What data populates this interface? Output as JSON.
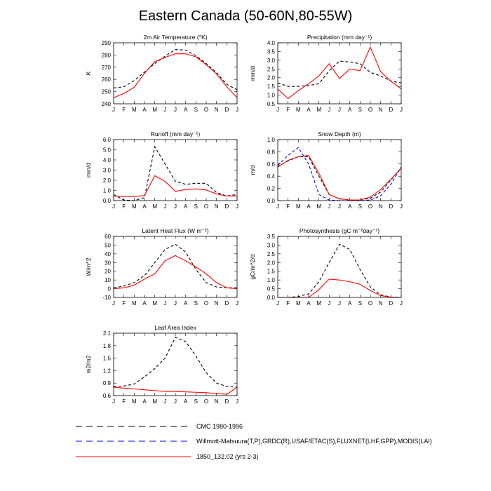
{
  "figure_title": "Eastern Canada (50-60N,80-55W)",
  "series_styles": [
    {
      "name": "CMC 1980-1996",
      "color": "#000000",
      "dash": "4,3"
    },
    {
      "name": "Willmott-Matsuura(T,P),GRDC(R),USAF/ETAC(S),FLUXNET(LHF,GPP),MODIS(LAI)",
      "color": "#0000ff",
      "dash": "4,3"
    },
    {
      "name": "1850_132.02 (yrs 2-3)",
      "color": "#ff0000",
      "dash": ""
    }
  ],
  "legend": [
    {
      "label": "CMC 1980-1996",
      "color": "#000000",
      "dash": "9,6"
    },
    {
      "label": "Willmott-Matsuura(T,P),GRDC(R),USAF/ETAC(S),FLUXNET(LHF,GPP),MODIS(LAI)",
      "color": "#0000ff",
      "dash": "9,6"
    },
    {
      "label": "1850_132.02 (yrs 2-3)",
      "color": "#ff0000",
      "dash": ""
    }
  ],
  "chart_data": [
    {
      "type": "line",
      "title": "2m Air Temperature (°K)",
      "ylabel": "K",
      "categories": [
        "J",
        "F",
        "M",
        "A",
        "M",
        "J",
        "J",
        "A",
        "S",
        "O",
        "N",
        "D",
        "J"
      ],
      "ylim": [
        240,
        290
      ],
      "yticks": [
        240,
        250,
        260,
        270,
        280,
        290
      ],
      "series": [
        {
          "style": 0,
          "values": [
            253,
            254,
            259,
            266,
            273,
            279,
            284.5,
            284,
            279.5,
            273,
            265.5,
            256,
            251.5
          ]
        },
        {
          "style": 2,
          "values": [
            245,
            248.5,
            253.5,
            265,
            274.5,
            278,
            281,
            281,
            278.5,
            272,
            264.5,
            254,
            245
          ]
        }
      ]
    },
    {
      "type": "line",
      "title": "Precipitation (mm day⁻¹)",
      "ylabel": "mm/d",
      "categories": [
        "J",
        "F",
        "M",
        "A",
        "M",
        "J",
        "J",
        "A",
        "S",
        "O",
        "N",
        "D",
        "J"
      ],
      "ylim": [
        0.5,
        4.0
      ],
      "yticks": [
        0.5,
        1.0,
        1.5,
        2.0,
        2.5,
        3.0,
        3.5,
        4.0
      ],
      "series": [
        {
          "style": 0,
          "values": [
            1.7,
            1.5,
            1.5,
            1.55,
            1.65,
            2.4,
            2.95,
            2.9,
            2.8,
            2.3,
            2.1,
            1.8,
            1.7
          ]
        },
        {
          "style": 2,
          "values": [
            1.35,
            0.8,
            1.25,
            1.65,
            2.1,
            2.8,
            1.95,
            2.5,
            2.4,
            3.75,
            2.35,
            1.8,
            1.35
          ]
        }
      ]
    },
    {
      "type": "line",
      "title": "Runoff (mm day⁻¹)",
      "ylabel": "mm/d",
      "categories": [
        "J",
        "F",
        "M",
        "A",
        "M",
        "J",
        "J",
        "A",
        "S",
        "O",
        "N",
        "D",
        "J"
      ],
      "ylim": [
        0.0,
        6.0
      ],
      "yticks": [
        0.0,
        1.0,
        2.0,
        3.0,
        4.0,
        5.0,
        6.0
      ],
      "series": [
        {
          "style": 0,
          "values": [
            0.6,
            0.05,
            0.0,
            0.3,
            5.3,
            3.6,
            1.9,
            1.6,
            1.7,
            1.7,
            0.8,
            0.45,
            0.6
          ]
        },
        {
          "style": 2,
          "values": [
            0.45,
            0.4,
            0.4,
            0.5,
            2.45,
            1.9,
            0.9,
            1.1,
            1.15,
            1.05,
            0.65,
            0.45,
            0.45
          ]
        }
      ]
    },
    {
      "type": "line",
      "title": "Snow Depth (m)",
      "ylabel": "m/d",
      "categories": [
        "J",
        "F",
        "M",
        "A",
        "M",
        "J",
        "J",
        "A",
        "S",
        "O",
        "N",
        "D",
        "J"
      ],
      "ylim": [
        0.0,
        1.0
      ],
      "yticks": [
        0.0,
        0.2,
        0.4,
        0.6,
        0.8,
        1.0
      ],
      "series": [
        {
          "style": 0,
          "values": [
            0.56,
            0.65,
            0.72,
            0.72,
            0.4,
            0.1,
            0.03,
            0.01,
            0.01,
            0.04,
            0.14,
            0.34,
            0.54
          ]
        },
        {
          "style": 1,
          "values": [
            0.58,
            0.74,
            0.87,
            0.6,
            0.1,
            0.01,
            0.0,
            0.0,
            0.0,
            0.01,
            0.08,
            0.27,
            0.55
          ]
        },
        {
          "style": 2,
          "values": [
            0.55,
            0.66,
            0.72,
            0.74,
            0.45,
            0.1,
            0.03,
            0.01,
            0.01,
            0.06,
            0.18,
            0.35,
            0.53
          ]
        }
      ]
    },
    {
      "type": "line",
      "title": "Latent Heat Flux (W m⁻²)",
      "ylabel": "W/m^2",
      "categories": [
        "J",
        "F",
        "M",
        "A",
        "M",
        "J",
        "J",
        "A",
        "S",
        "O",
        "N",
        "D",
        "J"
      ],
      "ylim": [
        -10,
        60
      ],
      "yticks": [
        -10,
        0,
        10,
        20,
        30,
        40,
        50,
        60
      ],
      "series": [
        {
          "style": 0,
          "values": [
            1,
            3,
            7,
            15,
            30,
            45,
            51,
            42,
            22,
            7,
            2,
            1,
            1
          ]
        },
        {
          "style": 2,
          "values": [
            0,
            1,
            4,
            11,
            17,
            32,
            38,
            32,
            25,
            17,
            7,
            1,
            0
          ]
        }
      ]
    },
    {
      "type": "line",
      "title": "Photosynthesis (gC m⁻²day⁻¹)",
      "ylabel": "gC/m^2/d",
      "categories": [
        "J",
        "F",
        "M",
        "A",
        "M",
        "J",
        "J",
        "A",
        "S",
        "O",
        "N",
        "D",
        "J"
      ],
      "ylim": [
        0.0,
        3.5
      ],
      "yticks": [
        0.0,
        0.5,
        1.0,
        1.5,
        2.0,
        2.5,
        3.0,
        3.5
      ],
      "series": [
        {
          "style": 0,
          "values": [
            0.0,
            0.0,
            0.05,
            0.2,
            0.9,
            2.0,
            3.05,
            2.75,
            1.6,
            0.6,
            0.15,
            0.02,
            0.0
          ]
        },
        {
          "style": 2,
          "values": [
            0.0,
            0.0,
            0.0,
            0.0,
            0.45,
            1.05,
            1.0,
            0.9,
            0.75,
            0.4,
            0.1,
            0.02,
            0.0
          ]
        }
      ]
    },
    {
      "type": "line",
      "title": "Leaf Area Index",
      "ylabel": "m2/m2",
      "categories": [
        "J",
        "F",
        "M",
        "A",
        "M",
        "J",
        "J",
        "A",
        "S",
        "O",
        "N",
        "D",
        "J"
      ],
      "ylim": [
        0.6,
        2.1
      ],
      "yticks": [
        0.6,
        0.9,
        1.2,
        1.5,
        1.8,
        2.1
      ],
      "series": [
        {
          "style": 0,
          "values": [
            0.82,
            0.83,
            0.88,
            1.05,
            1.25,
            1.5,
            2.0,
            1.9,
            1.55,
            1.15,
            0.9,
            0.82,
            0.8
          ]
        },
        {
          "style": 2,
          "values": [
            0.8,
            0.78,
            0.76,
            0.74,
            0.72,
            0.7,
            0.7,
            0.69,
            0.68,
            0.67,
            0.65,
            0.63,
            0.8
          ]
        }
      ]
    }
  ]
}
